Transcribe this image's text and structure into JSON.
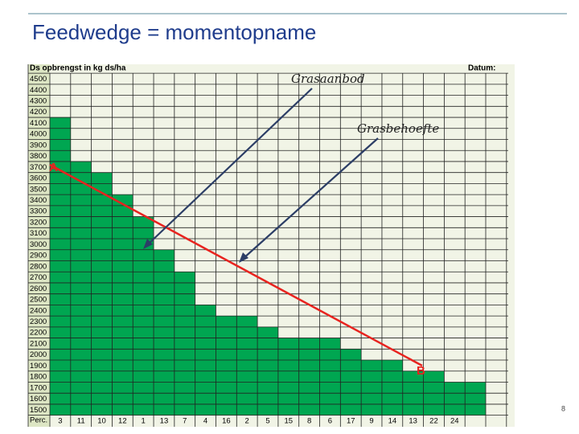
{
  "header": {
    "title": "Feedwedge = momentopname",
    "page_number": "8"
  },
  "chart_data": {
    "type": "bar",
    "y_axis_label": "Ds opbrengst in kg ds/ha",
    "date_label": "Datum:",
    "x_axis_label": "Perc.",
    "categories": [
      "3",
      "11",
      "10",
      "12",
      "1",
      "13",
      "7",
      "4",
      "16",
      "2",
      "5",
      "15",
      "8",
      "6",
      "17",
      "9",
      "14",
      "13",
      "22",
      "24",
      null
    ],
    "values": [
      4150,
      3750,
      3650,
      3450,
      3250,
      2950,
      2750,
      2450,
      2350,
      2350,
      2250,
      2150,
      2150,
      2150,
      2050,
      1950,
      1950,
      1850,
      1850,
      1750,
      1750
    ],
    "color": "#00a651",
    "ylim": [
      1450,
      4550
    ],
    "yticks": [
      4500,
      4400,
      4300,
      4200,
      4100,
      4000,
      3900,
      3800,
      3700,
      3600,
      3500,
      3400,
      3300,
      3200,
      3100,
      3000,
      2900,
      2800,
      2700,
      2600,
      2500,
      2400,
      2300,
      2200,
      2100,
      2000,
      1900,
      1800,
      1700,
      1600,
      1500
    ],
    "grid": true,
    "annotations": {
      "supply": "Grasaanbod",
      "demand": "Grasbehoefte",
      "point_a": "A",
      "point_b": "B"
    }
  }
}
